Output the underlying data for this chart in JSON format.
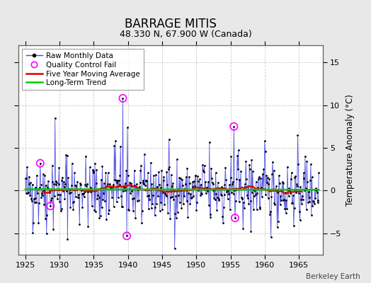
{
  "title": "BARRAGE MITIS",
  "subtitle": "48.330 N, 67.900 W (Canada)",
  "ylabel": "Temperature Anomaly (°C)",
  "watermark": "Berkeley Earth",
  "xlim": [
    1924.0,
    1968.5
  ],
  "ylim": [
    -7.5,
    17
  ],
  "yticks": [
    -5,
    0,
    5,
    10,
    15
  ],
  "xticks": [
    1925,
    1930,
    1935,
    1940,
    1945,
    1950,
    1955,
    1960,
    1965
  ],
  "bg_color": "#e8e8e8",
  "plot_bg_color": "#ffffff",
  "line_color": "#4444dd",
  "marker_color": "#000000",
  "ma_color": "#dd0000",
  "trend_color": "#00cc00",
  "qc_color": "#ff00ff",
  "start_year": 1925,
  "end_year": 1967,
  "seed": 42
}
